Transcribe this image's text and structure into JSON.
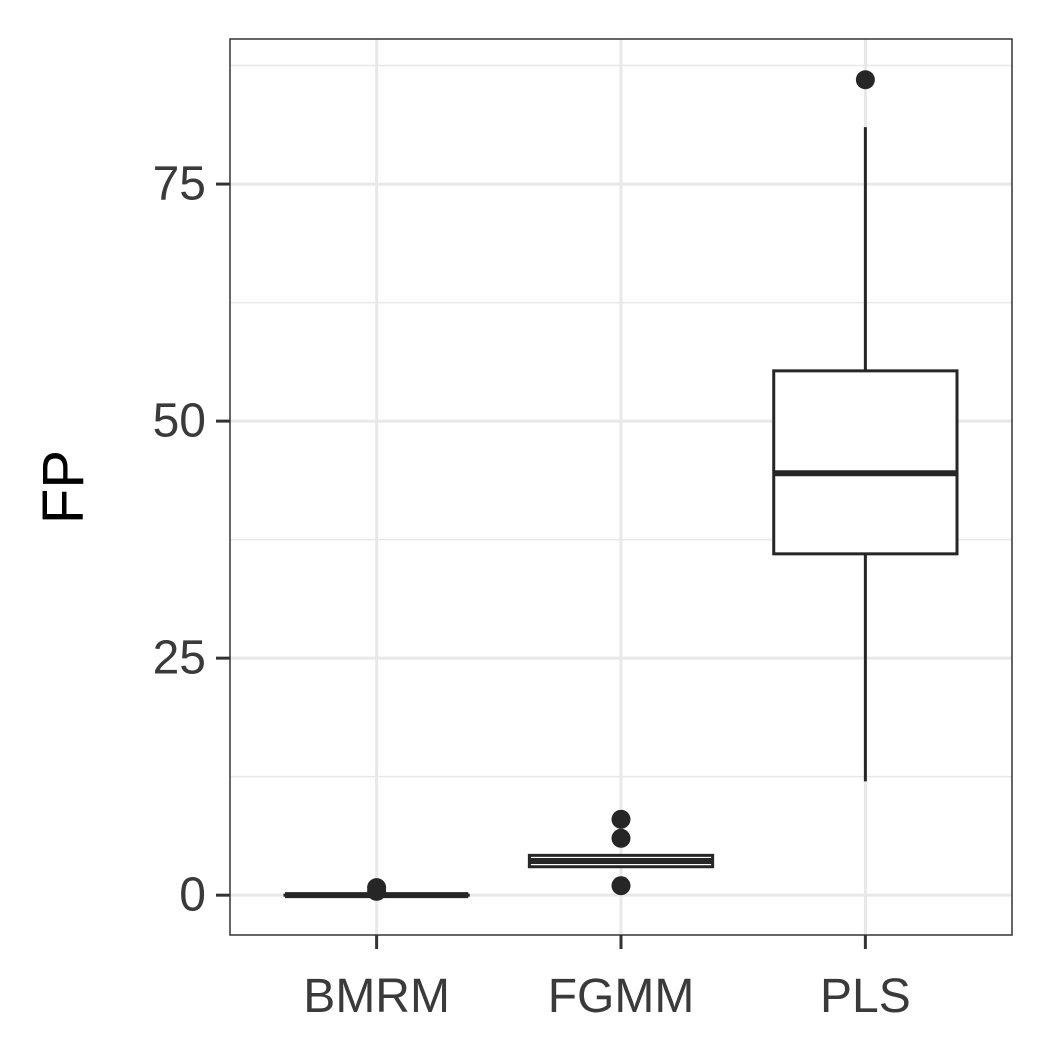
{
  "chart_data": {
    "type": "boxplot",
    "title": "",
    "xlabel": "",
    "ylabel": "FP",
    "categories": [
      "BMRM",
      "FGMM",
      "PLS"
    ],
    "y_ticks": [
      0,
      25,
      50,
      75
    ],
    "y_tick_labels": [
      "0",
      "25",
      "50",
      "75"
    ],
    "ylim": [
      -4.2,
      90.3
    ],
    "grid": true,
    "legend": "none",
    "boxes": [
      {
        "category": "BMRM",
        "whisker_low": 0,
        "q1": 0,
        "median": 0,
        "q3": 0,
        "whisker_high": 0,
        "outliers": [
          0.8,
          0.4
        ]
      },
      {
        "category": "FGMM",
        "whisker_low": 3,
        "q1": 3,
        "median": 3.6,
        "q3": 4.2,
        "whisker_high": 4.2,
        "outliers": [
          8,
          6,
          1
        ]
      },
      {
        "category": "PLS",
        "whisker_low": 12,
        "q1": 36,
        "median": 44.5,
        "q3": 55.3,
        "whisker_high": 81,
        "outliers": [
          86
        ]
      }
    ],
    "colors": {
      "stroke": "#262626",
      "fill": "#ffffff",
      "grid": "#e8e8e8",
      "border": "#333333",
      "tick_label": "#3a3a3a",
      "axis_title": "#000000"
    }
  }
}
